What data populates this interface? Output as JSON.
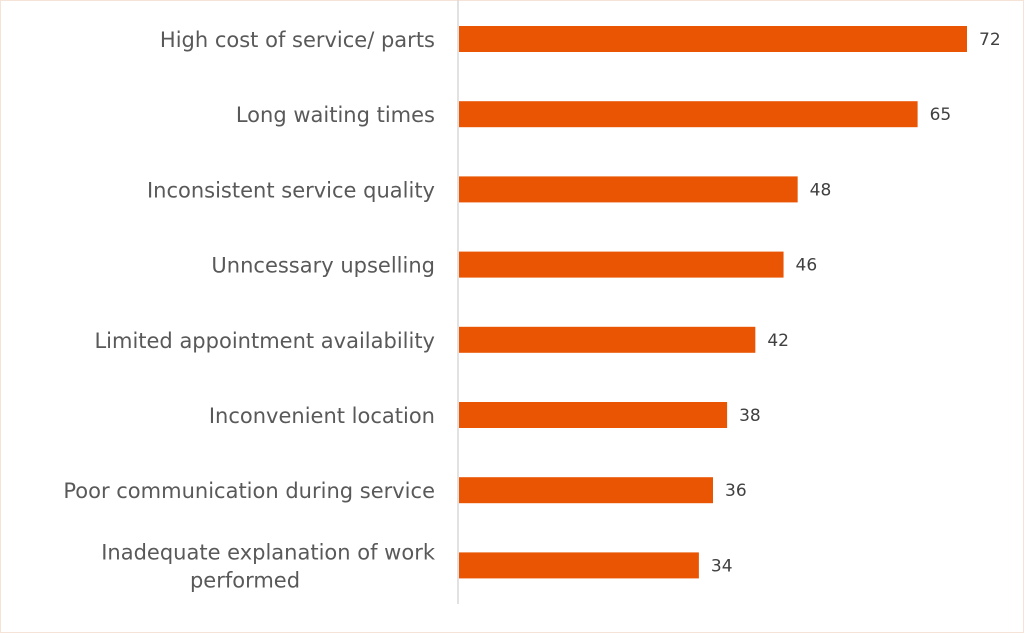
{
  "chart_data": {
    "type": "bar",
    "orientation": "horizontal",
    "categories": [
      "High cost of service/ parts",
      "Long waiting times",
      "Inconsistent service quality",
      "Unncessary upselling",
      "Limited appointment availability",
      "Inconvenient location",
      "Poor communication during service",
      "Inadequate explanation of work performed"
    ],
    "values": [
      72,
      65,
      48,
      46,
      42,
      38,
      36,
      34
    ],
    "value_labels": [
      "72",
      "65",
      "48",
      "46",
      "42",
      "38",
      "36",
      "34"
    ],
    "xlim": [
      0,
      72
    ],
    "grid": false,
    "legend": "none",
    "colors": {
      "bar": "#ea5504",
      "axis": "#d9d9d9",
      "label": "#595959",
      "value": "#404040"
    }
  }
}
